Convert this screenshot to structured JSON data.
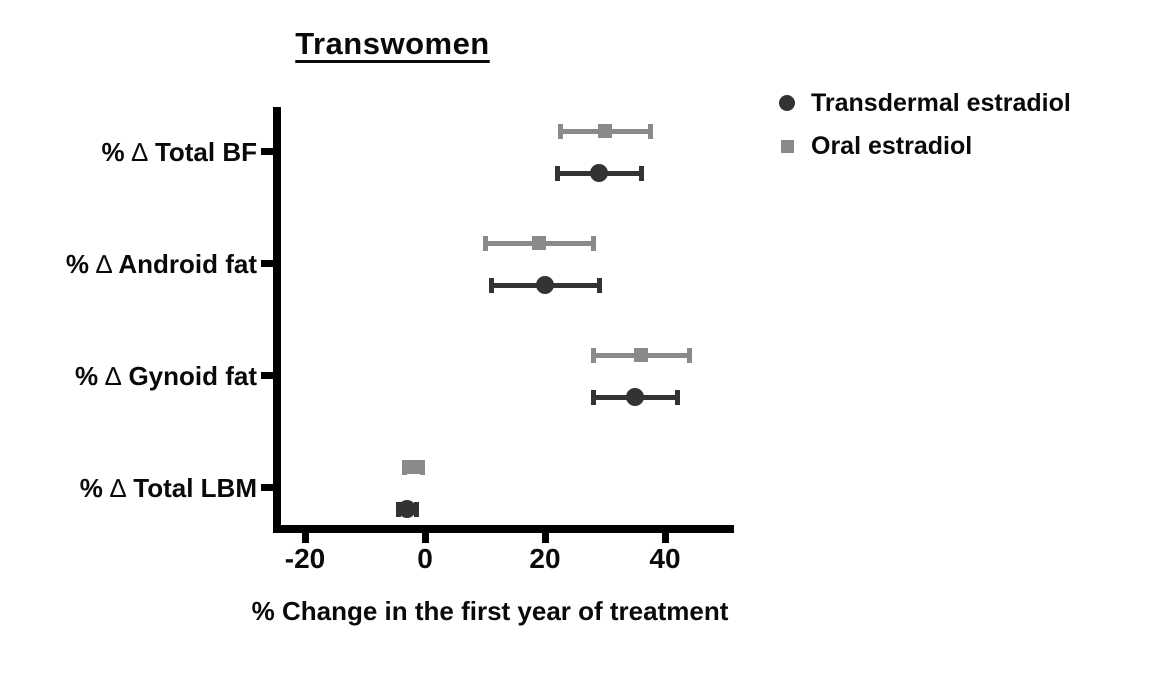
{
  "chart_data": {
    "type": "scatter",
    "subtype": "forest-dot-plot-with-error-bars",
    "title": "Transwomen",
    "xlabel": "% Change in the first year of treatment",
    "categories": [
      "% ∆ Total BF",
      "% ∆ Android fat",
      "% ∆ Gynoid fat",
      "% ∆ Total LBM"
    ],
    "xticks": [
      "-20",
      "0",
      "20",
      "40"
    ],
    "xtick_values": [
      -20,
      0,
      20,
      40
    ],
    "xlim": [
      -25.5,
      51
    ],
    "grid": false,
    "legend_position": "top-right",
    "series": [
      {
        "name": "Transdermal estradiol",
        "marker": "circle",
        "color": "#333333",
        "values": [
          29,
          20,
          35,
          -3
        ],
        "ci_low": [
          22,
          11,
          28,
          -4.5
        ],
        "ci_high": [
          36,
          29,
          42,
          -1.5
        ]
      },
      {
        "name": "Oral estradiol",
        "marker": "square",
        "color": "#8a8a8a",
        "values": [
          30,
          19,
          36,
          -2
        ],
        "ci_low": [
          22.5,
          10,
          28,
          -3.5
        ],
        "ci_high": [
          37.5,
          28,
          44,
          -0.5
        ]
      }
    ],
    "colors": {
      "axis": "#000000",
      "text": "#0a0a0a",
      "background": "#ffffff"
    }
  }
}
